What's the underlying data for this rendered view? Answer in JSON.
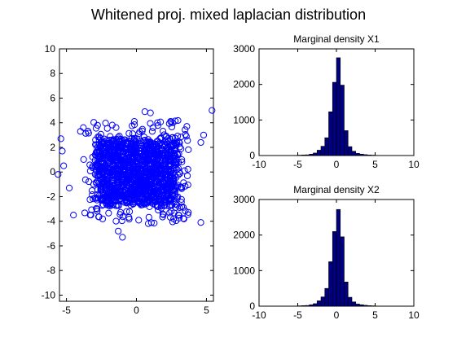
{
  "figure": {
    "title": "Whitened proj. mixed laplacian distribution"
  },
  "chart_data": [
    {
      "type": "scatter",
      "title": "",
      "xlabel": "",
      "ylabel": "",
      "xlim": [
        -5.5,
        5.5
      ],
      "ylim": [
        -10.5,
        10
      ],
      "xticks": [
        -5,
        0,
        5
      ],
      "yticks": [
        10,
        8,
        6,
        4,
        2,
        0,
        -2,
        -4,
        -6,
        -8,
        -10
      ],
      "marker": "circle-open",
      "color": "#0000ff",
      "distribution": "laplacian",
      "dense_region": {
        "x": [
          -3,
          3
        ],
        "y": [
          -3,
          3
        ]
      },
      "outliers": [
        {
          "x": 5.4,
          "y": 5.0
        },
        {
          "x": -5.4,
          "y": 2.7
        },
        {
          "x": -5.3,
          "y": 1.7
        },
        {
          "x": -5.6,
          "y": -0.2
        },
        {
          "x": 4.6,
          "y": 2.4
        },
        {
          "x": 4.8,
          "y": 3.0
        },
        {
          "x": 4.6,
          "y": -4.1
        },
        {
          "x": -5.2,
          "y": 0.5
        },
        {
          "x": 0.6,
          "y": 4.9
        },
        {
          "x": 1.0,
          "y": 4.8
        },
        {
          "x": -1.0,
          "y": -5.3
        },
        {
          "x": -1.3,
          "y": -4.8
        },
        {
          "x": -4.5,
          "y": -3.5
        },
        {
          "x": -4.0,
          "y": 3.3
        },
        {
          "x": 2.6,
          "y": 4.0
        },
        {
          "x": 3.6,
          "y": 3.7
        },
        {
          "x": -4.8,
          "y": -1.3
        }
      ]
    },
    {
      "type": "bar",
      "title": "Marginal density X1",
      "xlabel": "",
      "ylabel": "",
      "xlim": [
        -10,
        10
      ],
      "ylim": [
        0,
        3000
      ],
      "xticks": [
        -10,
        -5,
        0,
        5,
        10
      ],
      "yticks": [
        0,
        1000,
        2000,
        3000
      ],
      "bar_color": "#000080",
      "bin_width": 0.5,
      "bins": [
        -5.5,
        -5,
        -4.5,
        -4,
        -3.5,
        -3,
        -2.5,
        -2,
        -1.5,
        -1,
        -0.5,
        0,
        0.5,
        1,
        1.5,
        2,
        2.5,
        3,
        3.5,
        4,
        4.5,
        5
      ],
      "values": [
        5,
        10,
        15,
        20,
        40,
        70,
        150,
        260,
        500,
        1230,
        2060,
        2750,
        1980,
        700,
        250,
        120,
        60,
        40,
        25,
        15,
        10,
        5
      ]
    },
    {
      "type": "bar",
      "title": "Marginal density X2",
      "xlabel": "",
      "ylabel": "",
      "xlim": [
        -10,
        10
      ],
      "ylim": [
        0,
        3000
      ],
      "xticks": [
        -10,
        -5,
        0,
        5,
        10
      ],
      "yticks": [
        0,
        1000,
        2000,
        3000
      ],
      "bar_color": "#000080",
      "bin_width": 0.5,
      "bins": [
        -5.5,
        -5,
        -4.5,
        -4,
        -3.5,
        -3,
        -2.5,
        -2,
        -1.5,
        -1,
        -0.5,
        0,
        0.5,
        1,
        1.5,
        2,
        2.5,
        3,
        3.5,
        4,
        4.5,
        5
      ],
      "values": [
        5,
        10,
        15,
        20,
        40,
        70,
        150,
        260,
        500,
        1250,
        2100,
        2720,
        1950,
        680,
        250,
        120,
        60,
        40,
        25,
        15,
        10,
        5
      ]
    }
  ]
}
